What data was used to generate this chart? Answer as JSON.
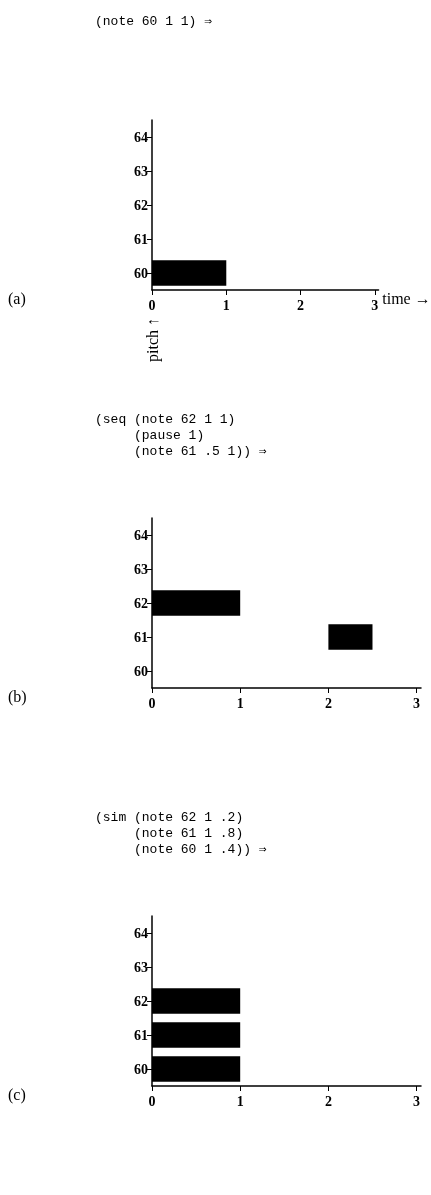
{
  "chart_data": [
    {
      "type": "bar",
      "orientation": "horizontal",
      "title": "(note 60 1 1) ⇒",
      "xlabel": "time →",
      "ylabel": "pitch ↑",
      "categories": [
        "64",
        "63",
        "62",
        "61",
        "60"
      ],
      "values": [
        null,
        null,
        null,
        null,
        1
      ],
      "base": [
        null,
        null,
        null,
        null,
        0
      ],
      "color": "#000000",
      "xlim": [
        0,
        3.05
      ],
      "xticks": [
        0,
        1,
        2,
        3
      ],
      "grid": false,
      "annotations": [
        "(a)"
      ]
    },
    {
      "type": "bar",
      "orientation": "horizontal",
      "title": "(seq (note 62 1 1)\n     (pause 1)\n     (note 61 .5 1)) ⇒",
      "categories": [
        "64",
        "63",
        "62",
        "61",
        "60"
      ],
      "values": [
        null,
        null,
        1,
        0.5,
        null
      ],
      "base": [
        null,
        null,
        0,
        2,
        null
      ],
      "color": "#000000",
      "xlim": [
        0,
        3.05
      ],
      "xticks": [
        0,
        1,
        2,
        3
      ],
      "grid": false,
      "annotations": [
        "(b)"
      ]
    },
    {
      "type": "bar",
      "orientation": "horizontal",
      "title": "(sim (note 62 1 .2)\n     (note 61 1 .8)\n     (note 60 1 .4)) ⇒",
      "categories": [
        "64",
        "63",
        "62",
        "61",
        "60"
      ],
      "values": [
        null,
        null,
        1,
        1,
        1
      ],
      "base": [
        null,
        null,
        0,
        0,
        0
      ],
      "color": "#000000",
      "xlim": [
        0,
        3.05
      ],
      "xticks": [
        0,
        1,
        2,
        3
      ],
      "grid": false,
      "annotations": [
        "(c)"
      ]
    }
  ]
}
